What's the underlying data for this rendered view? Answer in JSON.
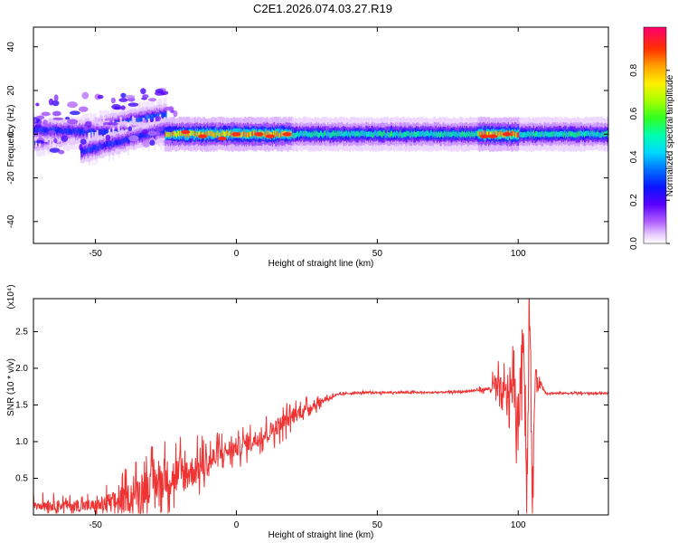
{
  "title": "C2E1.2026.074.03.27.R19",
  "chart_data": [
    {
      "type": "heatmap",
      "xlabel": "Height of straight line (km)",
      "ylabel": "Frequency (Hz)",
      "xlim": [
        -72,
        132
      ],
      "ylim": [
        -50,
        49
      ],
      "xticks": [
        -50,
        0,
        50,
        100
      ],
      "yticks": [
        -40,
        -20,
        0,
        20,
        40
      ],
      "colorbar": {
        "label": "Normalized spectral amplitude",
        "range": [
          0,
          1
        ],
        "ticks": [
          "0.0",
          "0.2",
          "0.4",
          "0.6",
          "0.8"
        ]
      },
      "features": [
        {
          "x0": -72,
          "x1": -25,
          "freq0": -3,
          "freq1": 9,
          "amplitude": 0.35
        },
        {
          "x0": -72,
          "x1": -25,
          "freq0": 2,
          "freq1": 0,
          "amplitude": 0.3
        },
        {
          "x0": -55,
          "x1": -25,
          "freq0": -8,
          "freq1": 2,
          "amplitude": 0.3
        },
        {
          "x0": -25,
          "x1": 20,
          "freq0": 0,
          "freq1": 0,
          "amplitude": 0.85
        },
        {
          "x0": 20,
          "x1": 132,
          "freq0": 0,
          "freq1": 0,
          "amplitude": 0.55
        },
        {
          "x0": 86,
          "x1": 100,
          "freq0": 0,
          "freq1": 0,
          "amplitude": 0.9
        }
      ]
    },
    {
      "type": "line",
      "xlabel": "Height of straight line (km)",
      "ylabel": "SNR (10 * v/v)",
      "multiplier": "(x10⁴)",
      "xlim": [
        -72,
        132
      ],
      "ylim": [
        0.0,
        2.95
      ],
      "xticks": [
        -50,
        0,
        50,
        100
      ],
      "yticks": [
        0.5,
        1.0,
        1.5,
        2.0,
        2.5
      ],
      "series": [
        {
          "color": "#ee3333",
          "x": [
            -72,
            -60,
            -50,
            -40,
            -35,
            -30,
            -25,
            -20,
            -15,
            -10,
            -5,
            0,
            5,
            10,
            15,
            20,
            25,
            30,
            35,
            40,
            50,
            60,
            70,
            80,
            85,
            90,
            92,
            95,
            98,
            100,
            102,
            103,
            104,
            105,
            106,
            110,
            120,
            132
          ],
          "y": [
            0.15,
            0.13,
            0.12,
            0.2,
            0.32,
            0.42,
            0.5,
            0.55,
            0.6,
            0.72,
            0.85,
            0.92,
            1.0,
            1.1,
            1.22,
            1.35,
            1.45,
            1.55,
            1.63,
            1.66,
            1.67,
            1.67,
            1.67,
            1.68,
            1.7,
            1.72,
            1.75,
            1.6,
            1.8,
            1.2,
            2.6,
            0.3,
            2.9,
            0.1,
            1.9,
            1.66,
            1.66,
            1.66
          ],
          "noise": [
            0.12,
            0.12,
            0.15,
            0.3,
            0.35,
            0.4,
            0.42,
            0.45,
            0.35,
            0.3,
            0.25,
            0.22,
            0.2,
            0.2,
            0.2,
            0.18,
            0.12,
            0.08,
            0.03,
            0.02,
            0.02,
            0.02,
            0.02,
            0.02,
            0.03,
            0.05,
            0.3,
            0.4,
            0.5,
            0.6,
            0.6,
            0.7,
            0.6,
            0.5,
            0.2,
            0.02,
            0.02,
            0.02
          ]
        }
      ]
    }
  ]
}
